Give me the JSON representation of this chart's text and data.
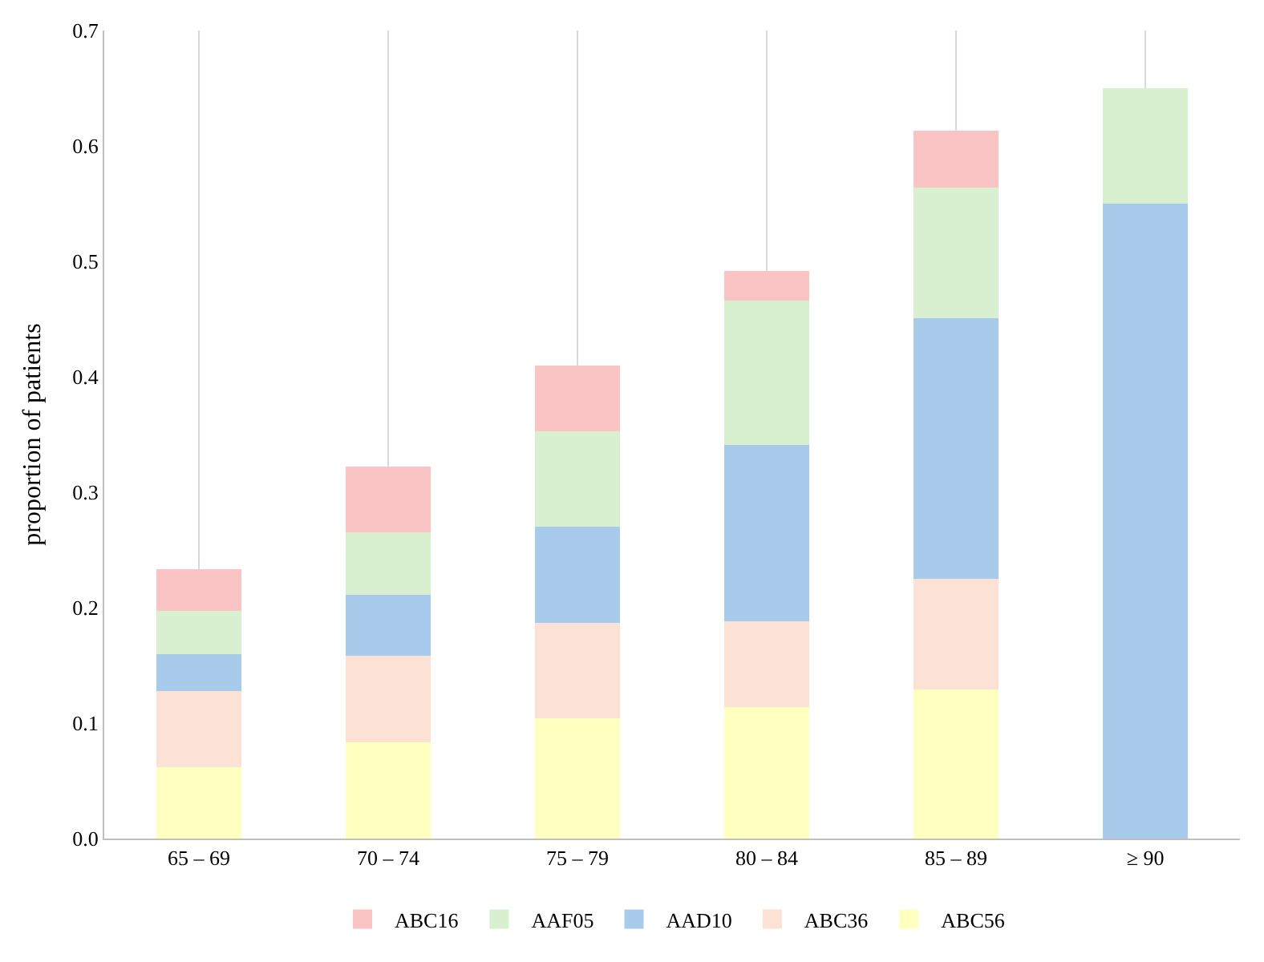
{
  "chart_data": {
    "type": "bar",
    "stacked": true,
    "ylabel": "proportion of patients",
    "categories": [
      "65 – 69",
      "70 – 74",
      "75 – 79",
      "80 – 84",
      "85 – 89",
      "≥ 90"
    ],
    "series": [
      {
        "name": "ABC56",
        "color": "#ffffc0",
        "values": [
          0.062,
          0.083,
          0.104,
          0.114,
          0.129,
          null
        ]
      },
      {
        "name": "ABC36",
        "color": "#fbe2d5",
        "values": [
          0.066,
          0.075,
          0.083,
          0.074,
          0.096,
          null
        ]
      },
      {
        "name": "AAD10",
        "color": "#a9cbeb",
        "values": [
          0.032,
          0.053,
          0.083,
          0.153,
          0.226,
          0.55
        ]
      },
      {
        "name": "AAF05",
        "color": "#d8f0d0",
        "values": [
          0.037,
          0.054,
          0.083,
          0.125,
          0.113,
          0.1
        ]
      },
      {
        "name": "ABC16",
        "color": "#fbc4c4",
        "values": [
          0.036,
          0.057,
          0.057,
          0.026,
          0.049,
          null
        ]
      }
    ],
    "ylim": [
      0,
      0.7
    ],
    "yticks": [
      {
        "value": 0,
        "label": "0.0"
      },
      0.1,
      0.2,
      0.3,
      0.4,
      0.5,
      0.6,
      0.7
    ],
    "grid": "x",
    "legend": "bottom"
  }
}
